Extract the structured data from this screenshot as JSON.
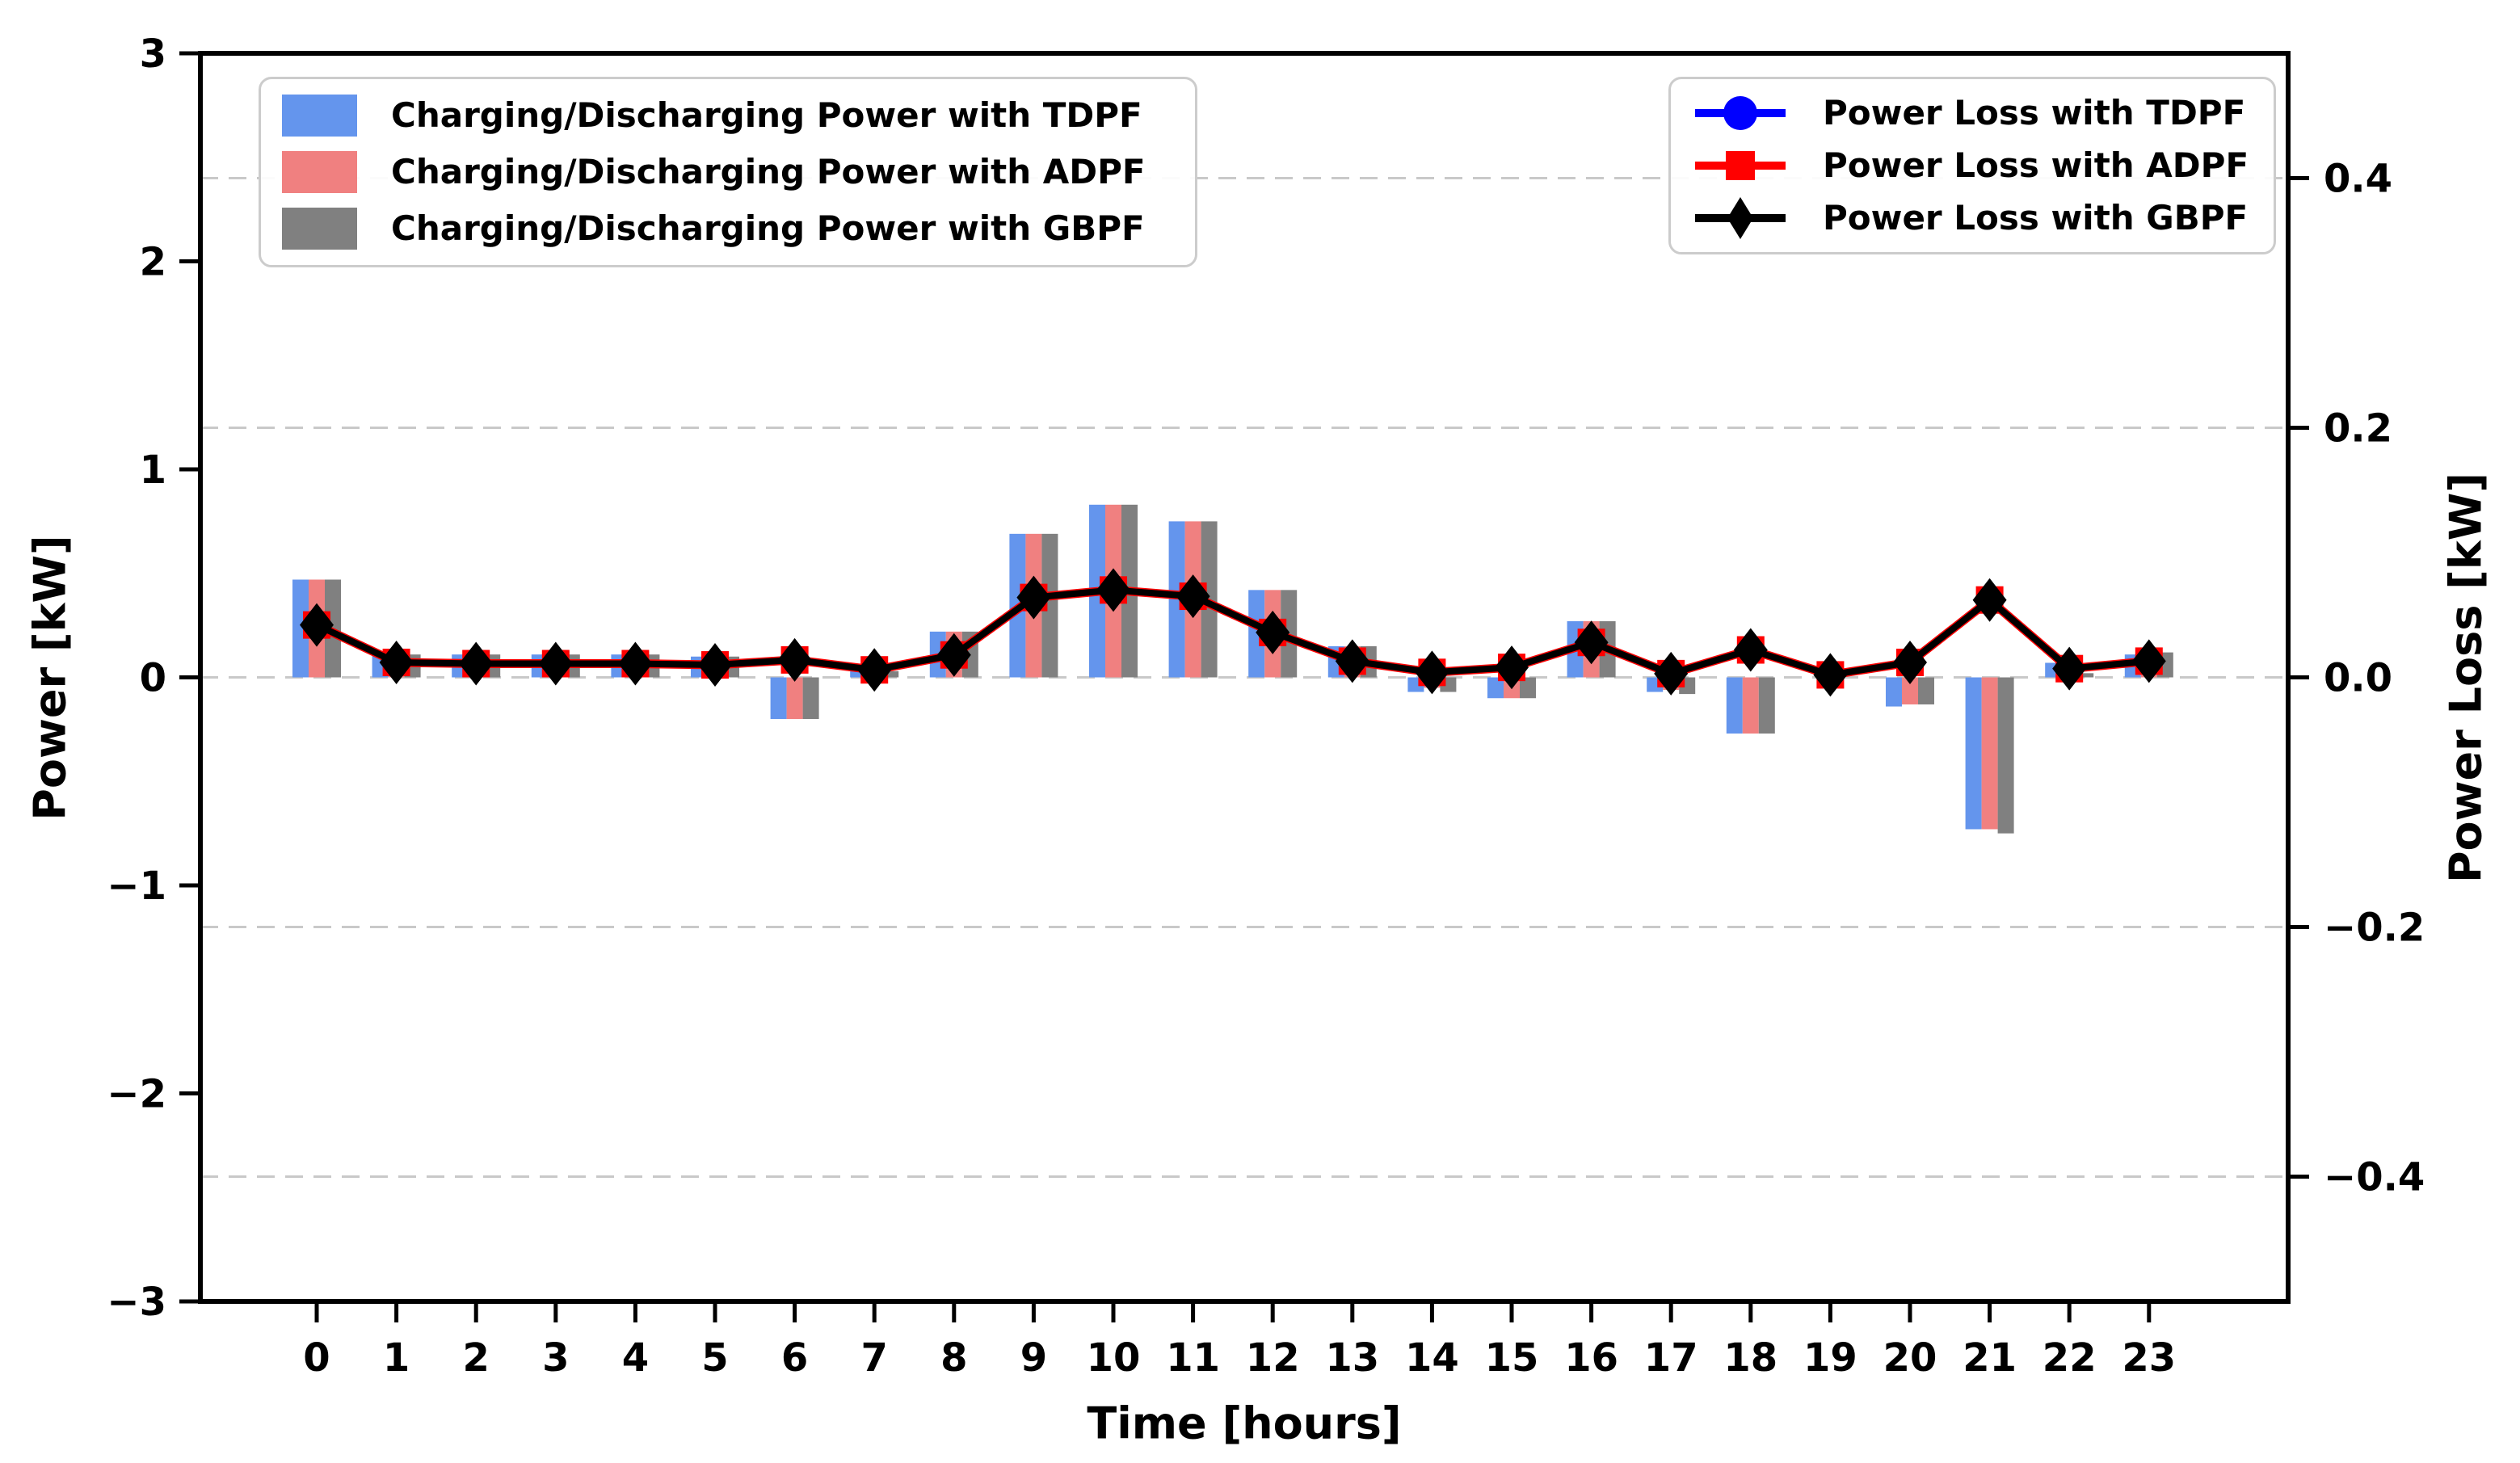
{
  "chart_data": {
    "type": "bar+line dual-axis",
    "title": "",
    "axes": {
      "x": {
        "label": "Time [hours]",
        "ticks": [
          0,
          1,
          2,
          3,
          4,
          5,
          6,
          7,
          8,
          9,
          10,
          11,
          12,
          13,
          14,
          15,
          16,
          17,
          18,
          19,
          20,
          21,
          22,
          23
        ],
        "tick_labels": [
          "0",
          "1",
          "2",
          "3",
          "4",
          "5",
          "6",
          "7",
          "8",
          "9",
          "10",
          "11",
          "12",
          "13",
          "14",
          "15",
          "16",
          "17",
          "18",
          "19",
          "20",
          "21",
          "22",
          "23"
        ]
      },
      "y_left": {
        "label": "Power [kW]",
        "lim": [
          -3,
          3
        ],
        "ticks": [
          3,
          2,
          1,
          0,
          -1,
          -2,
          -3
        ],
        "tick_labels": [
          "3",
          "2",
          "1",
          "0",
          "−1",
          "−2",
          "−3"
        ]
      },
      "y_right": {
        "label": "Power Loss [kW]",
        "lim": [
          -0.5,
          0.5
        ],
        "ticks": [
          0.4,
          0.2,
          0.0,
          -0.2,
          -0.4
        ],
        "tick_labels": [
          "0.4",
          "0.2",
          "0.0",
          "−0.2",
          "−0.4"
        ]
      }
    },
    "grid": {
      "visible": true,
      "orientation": "horizontal",
      "style": "dashed",
      "at_right_axis_ticks": true
    },
    "bar_series": [
      {
        "id": "tdpf",
        "name": "Charging/Discharging Power with TDPF",
        "color": "#6495ED",
        "values": [
          0.47,
          0.11,
          0.11,
          0.11,
          0.11,
          0.1,
          -0.2,
          0.03,
          0.22,
          0.69,
          0.83,
          0.75,
          0.42,
          0.15,
          -0.07,
          -0.1,
          0.27,
          -0.07,
          -0.27,
          0.0,
          -0.14,
          -0.73,
          0.07,
          0.11
        ]
      },
      {
        "id": "adpf",
        "name": "Charging/Discharging Power with ADPF",
        "color": "#F08080",
        "values": [
          0.47,
          0.11,
          0.11,
          0.11,
          0.11,
          0.1,
          -0.2,
          0.03,
          0.22,
          0.69,
          0.83,
          0.75,
          0.42,
          0.15,
          -0.05,
          -0.1,
          0.27,
          -0.06,
          -0.27,
          0.0,
          -0.13,
          -0.73,
          0.04,
          0.11
        ]
      },
      {
        "id": "gbpf",
        "name": "Charging/Discharging Power with GBPF",
        "color": "#808080",
        "values": [
          0.47,
          0.11,
          0.11,
          0.11,
          0.11,
          0.1,
          -0.2,
          0.03,
          0.22,
          0.69,
          0.83,
          0.75,
          0.42,
          0.15,
          -0.07,
          -0.1,
          0.27,
          -0.08,
          -0.27,
          0.0,
          -0.13,
          -0.75,
          0.02,
          0.12
        ]
      }
    ],
    "line_series": [
      {
        "id": "tdpf",
        "name": "Power Loss with TDPF",
        "color": "#0000FF",
        "marker": "circle",
        "line_width": 10,
        "values": [
          0.042,
          0.012,
          0.011,
          0.011,
          0.011,
          0.01,
          0.014,
          0.006,
          0.018,
          0.064,
          0.07,
          0.065,
          0.036,
          0.013,
          0.004,
          0.008,
          0.028,
          0.003,
          0.022,
          0.002,
          0.012,
          0.062,
          0.007,
          0.013
        ]
      },
      {
        "id": "adpf",
        "name": "Power Loss with ADPF",
        "color": "#FF0000",
        "marker": "square",
        "line_width": 11,
        "values": [
          0.042,
          0.012,
          0.011,
          0.011,
          0.011,
          0.01,
          0.014,
          0.006,
          0.018,
          0.064,
          0.07,
          0.065,
          0.036,
          0.013,
          0.004,
          0.008,
          0.028,
          0.003,
          0.022,
          0.002,
          0.012,
          0.062,
          0.007,
          0.013
        ]
      },
      {
        "id": "gbpf",
        "name": "Power Loss with GBPF",
        "color": "#000000",
        "marker": "diamond",
        "line_width": 8,
        "values": [
          0.042,
          0.012,
          0.011,
          0.011,
          0.011,
          0.01,
          0.014,
          0.006,
          0.018,
          0.064,
          0.07,
          0.065,
          0.036,
          0.013,
          0.004,
          0.008,
          0.028,
          0.003,
          0.022,
          0.002,
          0.012,
          0.062,
          0.007,
          0.013
        ]
      }
    ],
    "note": "The three power-loss curves overlap almost exactly (black GBPF drawn on top of red ADPF on top of blue TDPF).",
    "style": {
      "grid_color": "#c9c9c9",
      "spine_color": "#000000",
      "background": "#ffffff"
    }
  }
}
